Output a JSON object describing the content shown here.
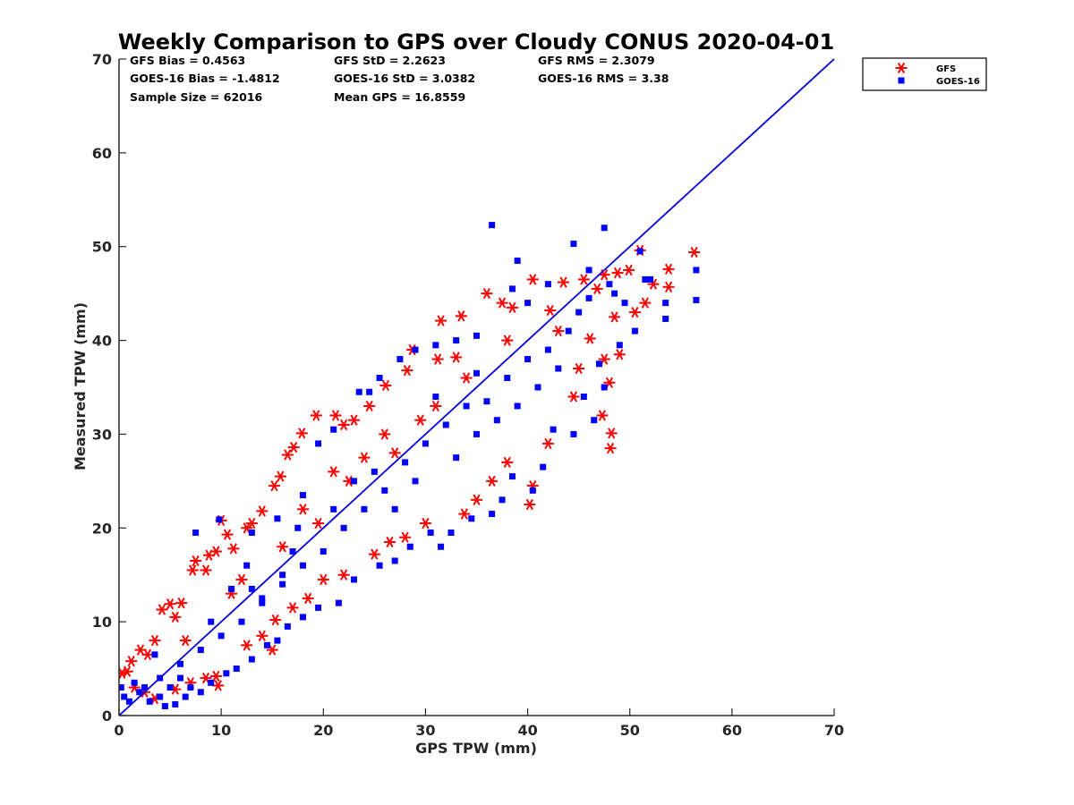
{
  "chart_data": {
    "type": "scatter",
    "title": "Weekly Comparison to GPS over Cloudy CONUS 2020-04-01",
    "xlabel": "GPS TPW (mm)",
    "ylabel": "Measured TPW (mm)",
    "xlim": [
      0,
      70
    ],
    "ylim": [
      0,
      70
    ],
    "xticks": [
      "0",
      "10",
      "20",
      "30",
      "40",
      "50",
      "60",
      "70"
    ],
    "yticks": [
      "0",
      "10",
      "20",
      "30",
      "40",
      "50",
      "60",
      "70"
    ],
    "grid": false,
    "legend_position": "outside-top-right",
    "stats": [
      [
        "GFS Bias = 0.4563",
        "GFS StD = 2.2623",
        "GFS RMS = 2.3079"
      ],
      [
        "GOES-16 Bias = -1.4812",
        "GOES-16 StD = 3.0382",
        "GOES-16 RMS = 3.38"
      ],
      [
        "Sample Size = 62016",
        "Mean GPS = 16.8559",
        ""
      ]
    ],
    "reference_line": {
      "x": [
        0,
        70
      ],
      "y": [
        0,
        70
      ],
      "color": "#0000dd"
    },
    "series": [
      {
        "name": "GFS",
        "marker": "asterisk",
        "color": "#ff0000",
        "points": [
          [
            0.3,
            4.5
          ],
          [
            0.8,
            4.7
          ],
          [
            1.2,
            5.8
          ],
          [
            2.1,
            7.0
          ],
          [
            2.8,
            6.5
          ],
          [
            3.5,
            8.0
          ],
          [
            4.2,
            11.3
          ],
          [
            5.0,
            11.9
          ],
          [
            5.5,
            10.5
          ],
          [
            6.1,
            12.0
          ],
          [
            7.5,
            16.5
          ],
          [
            7.2,
            15.5
          ],
          [
            8.5,
            15.5
          ],
          [
            9.5,
            17.5
          ],
          [
            10.0,
            20.8
          ],
          [
            8.8,
            17.1
          ],
          [
            10.6,
            19.3
          ],
          [
            11.2,
            17.8
          ],
          [
            12.5,
            20.0
          ],
          [
            13.0,
            20.5
          ],
          [
            14.0,
            21.8
          ],
          [
            15.2,
            24.5
          ],
          [
            15.8,
            25.5
          ],
          [
            16.5,
            27.8
          ],
          [
            17.1,
            28.6
          ],
          [
            17.9,
            30.1
          ],
          [
            19.3,
            32.0
          ],
          [
            21.2,
            32.0
          ],
          [
            22.0,
            31.0
          ],
          [
            23.0,
            31.5
          ],
          [
            24.5,
            33.0
          ],
          [
            26.1,
            35.2
          ],
          [
            28.2,
            36.8
          ],
          [
            28.7,
            39.0
          ],
          [
            31.2,
            38.0
          ],
          [
            33.0,
            38.2
          ],
          [
            31.5,
            42.1
          ],
          [
            33.5,
            42.6
          ],
          [
            36.0,
            45.0
          ],
          [
            37.5,
            44.0
          ],
          [
            38.5,
            43.5
          ],
          [
            40.5,
            46.5
          ],
          [
            42.2,
            43.2
          ],
          [
            43.5,
            46.2
          ],
          [
            45.5,
            46.5
          ],
          [
            46.8,
            45.5
          ],
          [
            47.5,
            47.0
          ],
          [
            48.8,
            47.2
          ],
          [
            49.9,
            47.5
          ],
          [
            51.0,
            49.6
          ],
          [
            51.5,
            44.0
          ],
          [
            52.3,
            46.0
          ],
          [
            53.8,
            47.6
          ],
          [
            53.8,
            45.7
          ],
          [
            56.3,
            49.4
          ],
          [
            50.5,
            43.0
          ],
          [
            48.5,
            42.5
          ],
          [
            46.1,
            40.2
          ],
          [
            47.5,
            38.0
          ],
          [
            49.0,
            38.5
          ],
          [
            48.0,
            35.5
          ],
          [
            47.3,
            32.0
          ],
          [
            48.2,
            30.1
          ],
          [
            48.1,
            28.5
          ],
          [
            44.5,
            34.0
          ],
          [
            45.0,
            37.0
          ],
          [
            42.0,
            29.0
          ],
          [
            40.5,
            24.5
          ],
          [
            40.2,
            22.5
          ],
          [
            38.0,
            27.0
          ],
          [
            36.5,
            25.0
          ],
          [
            35.0,
            23.0
          ],
          [
            33.8,
            21.5
          ],
          [
            30.0,
            20.5
          ],
          [
            28.0,
            19.0
          ],
          [
            26.5,
            18.5
          ],
          [
            25.0,
            17.2
          ],
          [
            22.0,
            15.0
          ],
          [
            20.0,
            14.5
          ],
          [
            18.5,
            12.5
          ],
          [
            17.0,
            11.5
          ],
          [
            15.3,
            10.2
          ],
          [
            15.0,
            7.0
          ],
          [
            14.0,
            8.5
          ],
          [
            12.5,
            7.5
          ],
          [
            9.5,
            4.2
          ],
          [
            9.7,
            3.2
          ],
          [
            8.5,
            4.0
          ],
          [
            7.0,
            3.5
          ],
          [
            5.5,
            2.8
          ],
          [
            3.5,
            1.8
          ],
          [
            2.5,
            2.5
          ],
          [
            1.5,
            3.0
          ],
          [
            19.5,
            20.5
          ],
          [
            22.5,
            25.0
          ],
          [
            27.0,
            28.0
          ],
          [
            29.5,
            31.5
          ],
          [
            24.0,
            27.5
          ],
          [
            18.0,
            22.0
          ],
          [
            12.0,
            14.5
          ],
          [
            6.5,
            8.0
          ],
          [
            34.0,
            36.0
          ],
          [
            38.0,
            40.0
          ],
          [
            43.0,
            41.0
          ],
          [
            31.0,
            33.0
          ],
          [
            26.0,
            30.0
          ],
          [
            21.0,
            26.0
          ],
          [
            16.0,
            18.0
          ],
          [
            11.0,
            13.0
          ]
        ]
      },
      {
        "name": "GOES-16",
        "marker": "square",
        "color": "#0000ff",
        "points": [
          [
            0.2,
            3.0
          ],
          [
            0.5,
            2.0
          ],
          [
            1.0,
            1.5
          ],
          [
            1.5,
            3.5
          ],
          [
            2.0,
            2.5
          ],
          [
            3.0,
            1.5
          ],
          [
            4.0,
            2.0
          ],
          [
            5.0,
            3.0
          ],
          [
            6.0,
            4.0
          ],
          [
            7.0,
            3.0
          ],
          [
            3.5,
            6.5
          ],
          [
            7.5,
            19.5
          ],
          [
            9.8,
            20.9
          ],
          [
            11.0,
            13.5
          ],
          [
            12.5,
            16.0
          ],
          [
            13.0,
            19.5
          ],
          [
            14.0,
            12.0
          ],
          [
            15.5,
            21.0
          ],
          [
            16.0,
            15.0
          ],
          [
            17.5,
            20.0
          ],
          [
            18.0,
            23.5
          ],
          [
            19.5,
            29.0
          ],
          [
            21.0,
            30.5
          ],
          [
            23.5,
            34.5
          ],
          [
            24.5,
            34.5
          ],
          [
            25.5,
            36.0
          ],
          [
            27.5,
            38.0
          ],
          [
            29.0,
            39.0
          ],
          [
            31.0,
            39.5
          ],
          [
            33.0,
            40.0
          ],
          [
            35.0,
            40.5
          ],
          [
            36.5,
            52.3
          ],
          [
            39.0,
            48.5
          ],
          [
            38.5,
            45.5
          ],
          [
            40.0,
            44.0
          ],
          [
            42.0,
            46.0
          ],
          [
            44.5,
            50.3
          ],
          [
            47.5,
            52.0
          ],
          [
            46.0,
            47.5
          ],
          [
            48.5,
            45.0
          ],
          [
            51.5,
            46.5
          ],
          [
            53.5,
            44.0
          ],
          [
            56.5,
            47.5
          ],
          [
            56.5,
            44.3
          ],
          [
            53.5,
            42.3
          ],
          [
            50.5,
            41.0
          ],
          [
            49.0,
            39.5
          ],
          [
            47.0,
            37.5
          ],
          [
            47.5,
            35.0
          ],
          [
            45.5,
            34.0
          ],
          [
            46.5,
            31.5
          ],
          [
            44.5,
            30.0
          ],
          [
            42.5,
            30.5
          ],
          [
            41.5,
            26.5
          ],
          [
            40.5,
            24.0
          ],
          [
            38.5,
            25.5
          ],
          [
            37.5,
            23.0
          ],
          [
            36.5,
            21.5
          ],
          [
            34.5,
            21.0
          ],
          [
            32.5,
            19.5
          ],
          [
            31.5,
            18.0
          ],
          [
            30.5,
            19.5
          ],
          [
            28.5,
            18.0
          ],
          [
            27.0,
            16.5
          ],
          [
            25.5,
            16.0
          ],
          [
            23.0,
            14.5
          ],
          [
            21.5,
            12.0
          ],
          [
            19.5,
            11.5
          ],
          [
            18.0,
            10.5
          ],
          [
            16.5,
            9.5
          ],
          [
            15.5,
            8.0
          ],
          [
            14.5,
            7.5
          ],
          [
            13.0,
            6.0
          ],
          [
            11.5,
            5.0
          ],
          [
            10.5,
            4.5
          ],
          [
            9.0,
            3.5
          ],
          [
            8.0,
            2.5
          ],
          [
            6.5,
            2.0
          ],
          [
            5.5,
            1.2
          ],
          [
            4.5,
            1.0
          ],
          [
            20.0,
            17.5
          ],
          [
            22.0,
            20.0
          ],
          [
            24.0,
            22.0
          ],
          [
            26.0,
            24.0
          ],
          [
            28.0,
            27.0
          ],
          [
            30.0,
            29.0
          ],
          [
            32.0,
            31.0
          ],
          [
            34.0,
            33.0
          ],
          [
            36.0,
            33.5
          ],
          [
            38.0,
            36.0
          ],
          [
            40.0,
            38.0
          ],
          [
            42.0,
            39.0
          ],
          [
            44.0,
            41.0
          ],
          [
            12.0,
            10.0
          ],
          [
            14.0,
            12.5
          ],
          [
            16.0,
            14.0
          ],
          [
            18.0,
            16.0
          ],
          [
            10.0,
            8.5
          ],
          [
            8.0,
            7.0
          ],
          [
            6.0,
            5.5
          ],
          [
            4.0,
            4.0
          ],
          [
            2.5,
            3.0
          ],
          [
            27.0,
            22.0
          ],
          [
            29.0,
            25.0
          ],
          [
            33.0,
            27.5
          ],
          [
            35.0,
            30.0
          ],
          [
            37.0,
            31.5
          ],
          [
            39.0,
            33.0
          ],
          [
            41.0,
            35.0
          ],
          [
            43.0,
            37.0
          ],
          [
            25.0,
            26.0
          ],
          [
            21.0,
            22.0
          ],
          [
            17.0,
            17.5
          ],
          [
            13.0,
            13.5
          ],
          [
            9.0,
            10.0
          ],
          [
            23.0,
            25.0
          ],
          [
            31.0,
            34.0
          ],
          [
            35.0,
            36.5
          ],
          [
            45.0,
            43.0
          ],
          [
            46.0,
            44.5
          ],
          [
            48.0,
            46.0
          ],
          [
            49.5,
            44.0
          ],
          [
            52.0,
            46.5
          ],
          [
            51.0,
            49.5
          ]
        ]
      }
    ]
  }
}
